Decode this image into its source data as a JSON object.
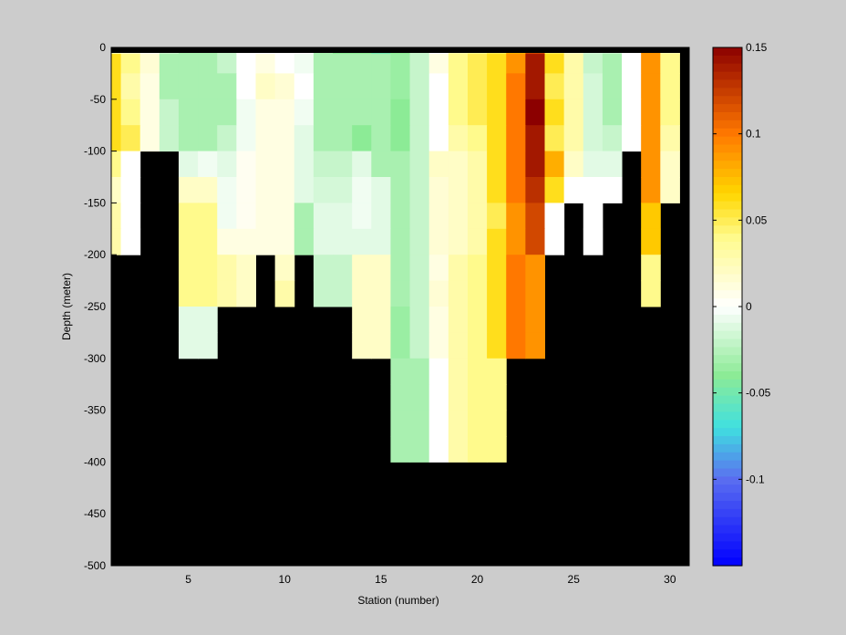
{
  "chart_data": {
    "type": "heatmap",
    "xlabel": "Station (number)",
    "ylabel": "Depth (meter)",
    "xlim": [
      1,
      31
    ],
    "ylim": [
      -500,
      0
    ],
    "xticks": [
      5,
      10,
      15,
      20,
      25,
      30
    ],
    "yticks": [
      0,
      -50,
      -100,
      -150,
      -200,
      -250,
      -300,
      -350,
      -400,
      -450,
      -500
    ],
    "colorbar": {
      "range": [
        -0.15,
        0.15
      ],
      "ticks": [
        0.15,
        0.1,
        0.05,
        0,
        -0.05,
        -0.1
      ],
      "tick_labels": [
        "0.15",
        "0.1",
        "0.05",
        "0",
        "-0.05",
        "-0.1"
      ]
    },
    "mask_color": "#000000",
    "stations": [
      1,
      2,
      3,
      4,
      5,
      6,
      7,
      8,
      9,
      10,
      11,
      12,
      13,
      14,
      15,
      16,
      17,
      18,
      19,
      20,
      21,
      22,
      23,
      24,
      25,
      26,
      27,
      28,
      29,
      30
    ],
    "depth_bins": [
      0,
      -12.5,
      -37.5,
      -62.5,
      -87.5,
      -112.5,
      -137.5,
      -162.5,
      -187.5,
      -212.5,
      -237.5,
      -262.5,
      -287.5,
      -312.5,
      -337.5,
      -362.5,
      -387.5
    ],
    "bottom_depth": [
      -200,
      -200,
      -100,
      -100,
      -300,
      -300,
      -250,
      -250,
      -200,
      -250,
      -200,
      -250,
      -250,
      -300,
      -300,
      -400,
      -400,
      -400,
      -400,
      -400,
      -400,
      -300,
      -300,
      -200,
      -150,
      -200,
      -150,
      -100,
      -250,
      -150
    ],
    "values": [
      [
        0.03,
        0.02,
        0.005,
        -0.02,
        -0.03,
        -0.03,
        -0.02,
        0.0,
        0.0,
        0.0,
        0.0,
        -0.03,
        -0.04,
        -0.04,
        -0.05,
        -0.04,
        -0.02,
        0.0,
        0.03,
        0.04,
        0.05,
        0.08,
        0.12,
        0.05,
        0.02,
        -0.015,
        -0.02,
        0.0,
        0.09,
        0.03
      ],
      [
        0.06,
        0.04,
        0.015,
        -0.03,
        -0.03,
        -0.03,
        -0.02,
        0.0,
        0.01,
        0.0,
        -0.005,
        -0.03,
        -0.03,
        -0.03,
        -0.03,
        -0.035,
        -0.02,
        0.01,
        0.04,
        0.05,
        0.06,
        0.09,
        0.14,
        0.06,
        0.03,
        -0.02,
        -0.03,
        0.0,
        0.09,
        0.04
      ],
      [
        0.06,
        0.03,
        0.01,
        -0.03,
        -0.03,
        -0.03,
        -0.03,
        0.0,
        0.02,
        0.015,
        0.0,
        -0.03,
        -0.03,
        -0.03,
        -0.03,
        -0.035,
        -0.02,
        0.0,
        0.04,
        0.05,
        0.06,
        0.1,
        0.14,
        0.05,
        0.03,
        -0.015,
        -0.03,
        0.0,
        0.09,
        0.04
      ],
      [
        0.06,
        0.04,
        0.01,
        -0.02,
        -0.03,
        -0.03,
        -0.03,
        -0.005,
        0.01,
        0.01,
        -0.005,
        -0.03,
        -0.03,
        -0.03,
        -0.03,
        -0.04,
        -0.02,
        0.0,
        0.04,
        0.05,
        0.06,
        0.1,
        0.15,
        0.06,
        0.03,
        -0.015,
        -0.03,
        0.0,
        0.09,
        0.04
      ],
      [
        0.06,
        0.05,
        0.01,
        -0.02,
        -0.03,
        -0.03,
        -0.02,
        -0.005,
        0.01,
        0.01,
        -0.01,
        -0.03,
        -0.03,
        -0.04,
        -0.03,
        -0.04,
        -0.02,
        0.0,
        0.03,
        0.04,
        0.06,
        0.1,
        0.14,
        0.05,
        0.03,
        -0.015,
        -0.02,
        0.0,
        0.09,
        0.03
      ],
      [
        0.04,
        0.0,
        0.0,
        -0.01,
        -0.01,
        -0.005,
        -0.01,
        0.005,
        0.01,
        0.01,
        -0.01,
        -0.02,
        -0.02,
        -0.01,
        -0.03,
        -0.03,
        -0.02,
        0.02,
        0.02,
        0.03,
        0.06,
        0.1,
        0.14,
        0.08,
        0.02,
        -0.01,
        -0.01,
        0.0,
        0.09,
        0.02
      ],
      [
        0.02,
        0.0,
        0.0,
        0.0,
        0.02,
        0.02,
        -0.005,
        0.005,
        0.01,
        0.01,
        -0.01,
        -0.015,
        -0.015,
        -0.005,
        -0.01,
        -0.03,
        -0.02,
        0.015,
        0.02,
        0.03,
        0.06,
        0.1,
        0.13,
        0.06,
        0.0,
        0.0,
        0.0,
        0.0,
        0.09,
        0.02
      ],
      [
        0.03,
        0.0,
        0.0,
        0.0,
        0.04,
        0.04,
        -0.005,
        0.005,
        0.01,
        0.01,
        -0.03,
        -0.01,
        -0.01,
        -0.005,
        -0.01,
        -0.03,
        -0.02,
        0.015,
        0.02,
        0.03,
        0.05,
        0.09,
        0.12,
        0.0,
        0.0,
        0.0,
        0.0,
        0.0,
        0.07,
        0.0
      ],
      [
        0.03,
        0.0,
        0.0,
        0.0,
        0.04,
        0.04,
        0.01,
        0.01,
        0.01,
        0.01,
        -0.03,
        -0.01,
        -0.01,
        -0.01,
        -0.01,
        -0.03,
        -0.02,
        0.015,
        0.02,
        0.03,
        0.06,
        0.09,
        0.12,
        0.0,
        0.0,
        0.0,
        0.0,
        0.0,
        0.07,
        0.0
      ],
      [
        0.0,
        0.0,
        0.0,
        0.0,
        0.04,
        0.04,
        0.03,
        0.02,
        0.0,
        0.02,
        0.0,
        -0.02,
        -0.02,
        0.02,
        0.02,
        -0.03,
        -0.02,
        0.01,
        0.03,
        0.04,
        0.06,
        0.1,
        0.09,
        0.0,
        0.0,
        0.0,
        0.0,
        0.0,
        0.04,
        0.0
      ],
      [
        0.0,
        0.0,
        0.0,
        0.0,
        0.04,
        0.04,
        0.03,
        0.02,
        0.0,
        0.03,
        0.0,
        -0.02,
        -0.02,
        0.02,
        0.02,
        -0.03,
        -0.02,
        0.015,
        0.03,
        0.04,
        0.06,
        0.1,
        0.09,
        0.0,
        0.0,
        0.0,
        0.0,
        0.0,
        0.04,
        0.0
      ],
      [
        0.0,
        0.0,
        0.0,
        0.0,
        -0.01,
        -0.01,
        0.0,
        0.0,
        0.0,
        0.0,
        0.0,
        0.0,
        0.0,
        0.02,
        0.02,
        -0.035,
        -0.02,
        0.01,
        0.03,
        0.04,
        0.06,
        0.1,
        0.09,
        0.0,
        0.0,
        0.0,
        0.0,
        0.0,
        0.0,
        0.0
      ],
      [
        0.0,
        0.0,
        0.0,
        0.0,
        -0.01,
        -0.01,
        0.0,
        0.0,
        0.0,
        0.0,
        0.0,
        0.0,
        0.0,
        0.02,
        0.02,
        -0.035,
        -0.02,
        0.01,
        0.03,
        0.04,
        0.06,
        0.1,
        0.09,
        0.0,
        0.0,
        0.0,
        0.0,
        0.0,
        0.0,
        0.0
      ],
      [
        0.0,
        0.0,
        0.0,
        0.0,
        0.0,
        0.0,
        0.0,
        0.0,
        0.0,
        0.0,
        0.0,
        0.0,
        0.0,
        0.0,
        0.0,
        -0.03,
        -0.03,
        0.0,
        0.03,
        0.04,
        0.04,
        0.0,
        0.0,
        0.0,
        0.0,
        0.0,
        0.0,
        0.0,
        0.0,
        0.0
      ],
      [
        0.0,
        0.0,
        0.0,
        0.0,
        0.0,
        0.0,
        0.0,
        0.0,
        0.0,
        0.0,
        0.0,
        0.0,
        0.0,
        0.0,
        0.0,
        -0.03,
        -0.03,
        0.0,
        0.03,
        0.04,
        0.04,
        0.0,
        0.0,
        0.0,
        0.0,
        0.0,
        0.0,
        0.0,
        0.0,
        0.0
      ],
      [
        0.0,
        0.0,
        0.0,
        0.0,
        0.0,
        0.0,
        0.0,
        0.0,
        0.0,
        0.0,
        0.0,
        0.0,
        0.0,
        0.0,
        0.0,
        -0.03,
        -0.03,
        0.0,
        0.03,
        0.04,
        0.04,
        0.0,
        0.0,
        0.0,
        0.0,
        0.0,
        0.0,
        0.0,
        0.0,
        0.0
      ],
      [
        0.0,
        0.0,
        0.0,
        0.0,
        0.0,
        0.0,
        0.0,
        0.0,
        0.0,
        0.0,
        0.0,
        0.0,
        0.0,
        0.0,
        0.0,
        -0.03,
        -0.03,
        0.0,
        0.03,
        0.04,
        0.04,
        0.0,
        0.0,
        0.0,
        0.0,
        0.0,
        0.0,
        0.0,
        0.0,
        0.0
      ]
    ]
  }
}
